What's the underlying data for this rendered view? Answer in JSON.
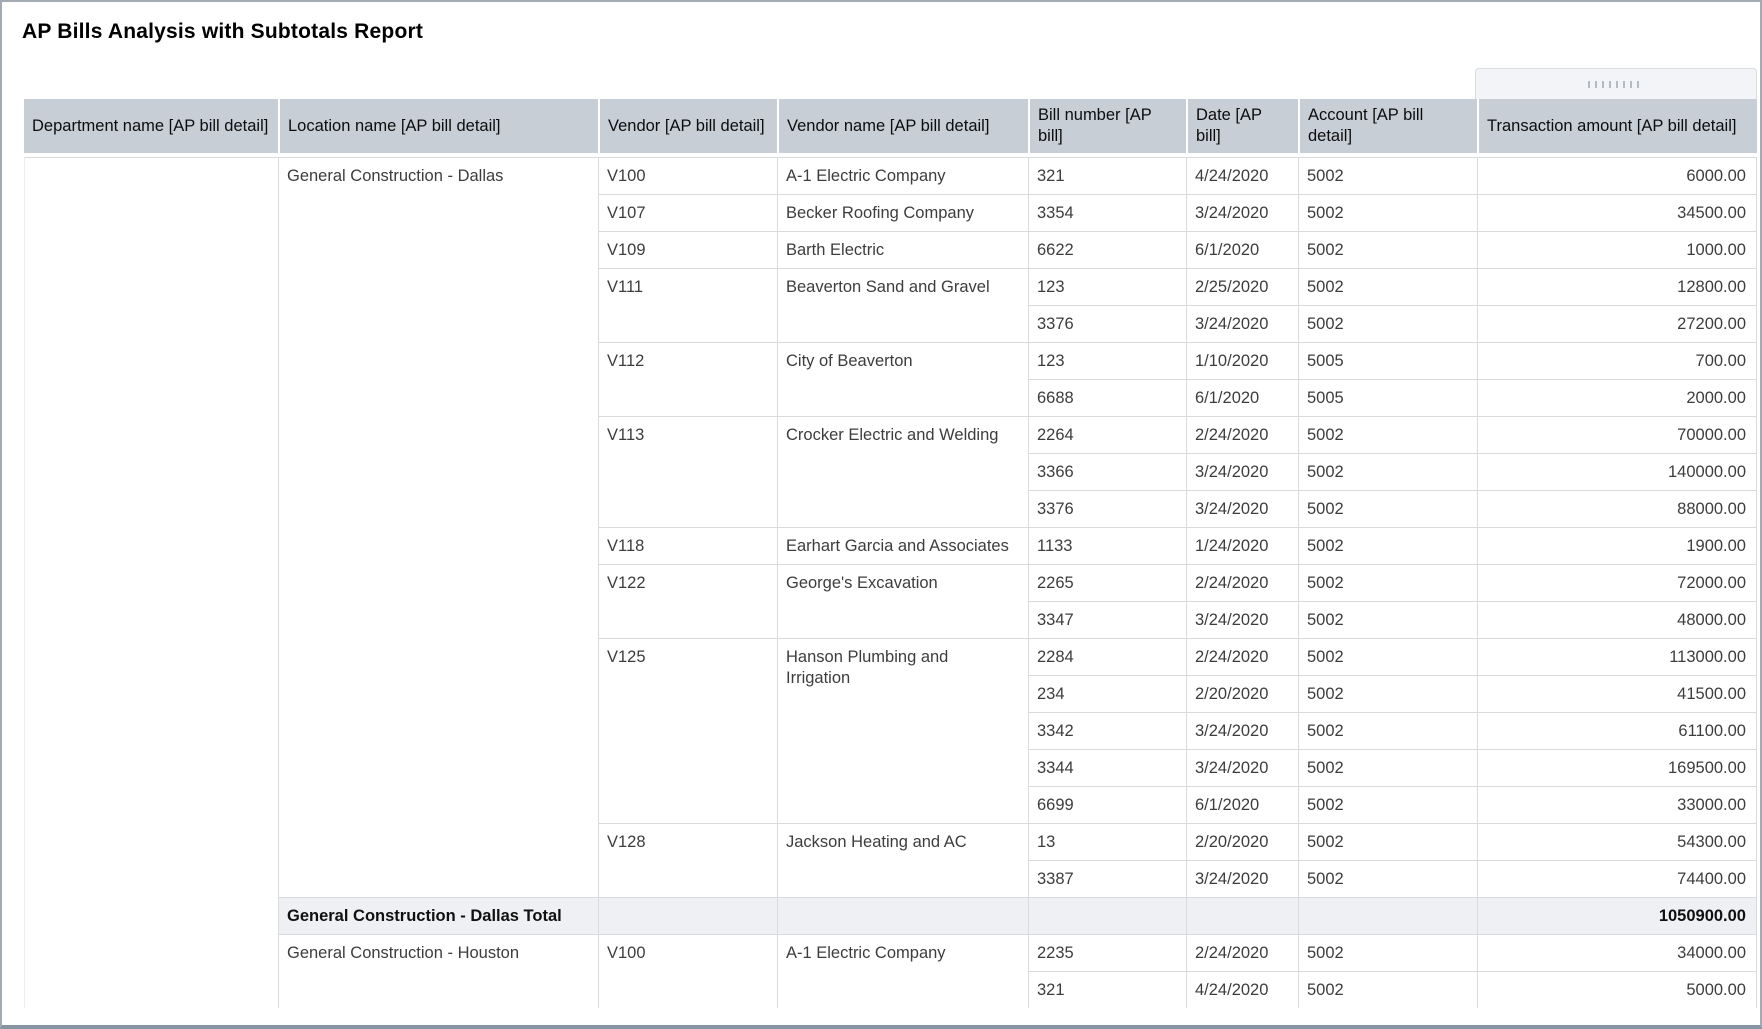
{
  "title": "AP Bills Analysis with Subtotals Report",
  "icons": {
    "column_drag_handle": "drag-dots-icon"
  },
  "report": {
    "columns": [
      {
        "label": "Department name [AP bill detail]"
      },
      {
        "label": "Location name [AP bill detail]"
      },
      {
        "label": "Vendor [AP bill detail]"
      },
      {
        "label": "Vendor name [AP bill detail]"
      },
      {
        "label": "Bill number [AP bill]"
      },
      {
        "label": "Date [AP bill]"
      },
      {
        "label": "Account [AP bill detail]"
      },
      {
        "label": "Transaction amount [AP bill detail]"
      }
    ],
    "groups": [
      {
        "department": "",
        "location": "General Construction - Dallas",
        "vendors": [
          {
            "vendor": "V100",
            "vendor_name": "A-1 Electric Company",
            "bills": [
              {
                "bill": "321",
                "date": "4/24/2020",
                "account": "5002",
                "amount": "6000.00"
              }
            ]
          },
          {
            "vendor": "V107",
            "vendor_name": "Becker Roofing Company",
            "bills": [
              {
                "bill": "3354",
                "date": "3/24/2020",
                "account": "5002",
                "amount": "34500.00"
              }
            ]
          },
          {
            "vendor": "V109",
            "vendor_name": "Barth Electric",
            "bills": [
              {
                "bill": "6622",
                "date": "6/1/2020",
                "account": "5002",
                "amount": "1000.00"
              }
            ]
          },
          {
            "vendor": "V111",
            "vendor_name": "Beaverton Sand and Gravel",
            "bills": [
              {
                "bill": "123",
                "date": "2/25/2020",
                "account": "5002",
                "amount": "12800.00"
              },
              {
                "bill": "3376",
                "date": "3/24/2020",
                "account": "5002",
                "amount": "27200.00"
              }
            ]
          },
          {
            "vendor": "V112",
            "vendor_name": "City of Beaverton",
            "bills": [
              {
                "bill": "123",
                "date": "1/10/2020",
                "account": "5005",
                "amount": "700.00"
              },
              {
                "bill": "6688",
                "date": "6/1/2020",
                "account": "5005",
                "amount": "2000.00"
              }
            ]
          },
          {
            "vendor": "V113",
            "vendor_name": "Crocker Electric and Welding",
            "bills": [
              {
                "bill": "2264",
                "date": "2/24/2020",
                "account": "5002",
                "amount": "70000.00"
              },
              {
                "bill": "3366",
                "date": "3/24/2020",
                "account": "5002",
                "amount": "140000.00"
              },
              {
                "bill": "3376",
                "date": "3/24/2020",
                "account": "5002",
                "amount": "88000.00"
              }
            ]
          },
          {
            "vendor": "V118",
            "vendor_name": "Earhart Garcia and Associates",
            "bills": [
              {
                "bill": "1133",
                "date": "1/24/2020",
                "account": "5002",
                "amount": "1900.00"
              }
            ]
          },
          {
            "vendor": "V122",
            "vendor_name": "George's Excavation",
            "bills": [
              {
                "bill": "2265",
                "date": "2/24/2020",
                "account": "5002",
                "amount": "72000.00"
              },
              {
                "bill": "3347",
                "date": "3/24/2020",
                "account": "5002",
                "amount": "48000.00"
              }
            ]
          },
          {
            "vendor": "V125",
            "vendor_name": "Hanson Plumbing and Irrigation",
            "bills": [
              {
                "bill": "2284",
                "date": "2/24/2020",
                "account": "5002",
                "amount": "113000.00"
              },
              {
                "bill": "234",
                "date": "2/20/2020",
                "account": "5002",
                "amount": "41500.00"
              },
              {
                "bill": "3342",
                "date": "3/24/2020",
                "account": "5002",
                "amount": "61100.00"
              },
              {
                "bill": "3344",
                "date": "3/24/2020",
                "account": "5002",
                "amount": "169500.00"
              },
              {
                "bill": "6699",
                "date": "6/1/2020",
                "account": "5002",
                "amount": "33000.00"
              }
            ]
          },
          {
            "vendor": "V128",
            "vendor_name": "Jackson Heating and AC",
            "bills": [
              {
                "bill": "13",
                "date": "2/20/2020",
                "account": "5002",
                "amount": "54300.00"
              },
              {
                "bill": "3387",
                "date": "3/24/2020",
                "account": "5002",
                "amount": "74400.00"
              }
            ]
          }
        ],
        "total_label": "General Construction - Dallas Total",
        "total_amount": "1050900.00"
      },
      {
        "department": "",
        "location": "General Construction - Houston",
        "vendors": [
          {
            "vendor": "V100",
            "vendor_name": "A-1 Electric Company",
            "bills": [
              {
                "bill": "2235",
                "date": "2/24/2020",
                "account": "5002",
                "amount": "34000.00"
              },
              {
                "bill": "321",
                "date": "4/24/2020",
                "account": "5002",
                "amount": "5000.00"
              }
            ]
          }
        ]
      }
    ]
  }
}
